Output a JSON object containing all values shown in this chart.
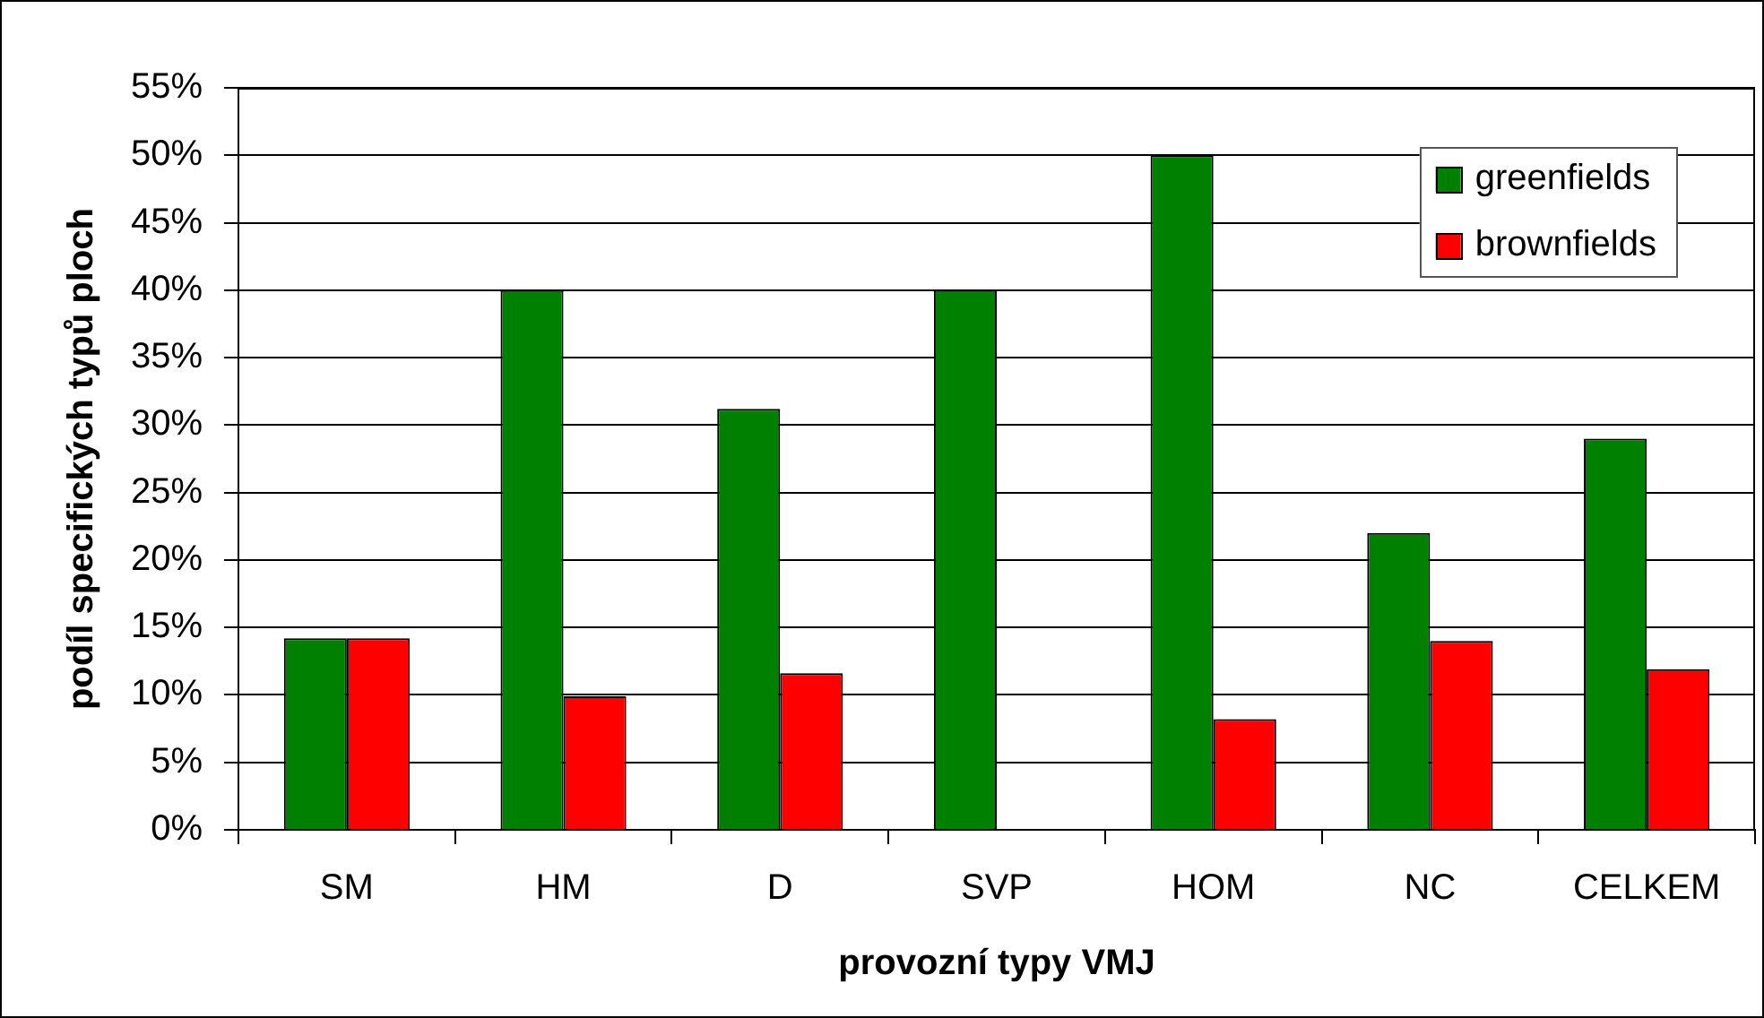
{
  "chart_data": {
    "type": "bar",
    "xlabel": "provozní typy VMJ",
    "ylabel": "podíl specifických typů ploch",
    "categories": [
      "SM",
      "HM",
      "D",
      "SVP",
      "HOM",
      "NC",
      "CELKEM"
    ],
    "series": [
      {
        "name": "greenfields",
        "color": "#008000",
        "values": [
          14.2,
          40,
          31.2,
          40,
          50,
          22,
          29
        ]
      },
      {
        "name": "brownfields",
        "color": "#ff0000",
        "values": [
          14.2,
          9.9,
          11.6,
          0,
          8.2,
          14,
          11.9
        ]
      }
    ],
    "ylim": [
      0,
      55
    ],
    "yticks": [
      {
        "value": 0,
        "label": "0%"
      },
      {
        "value": 5,
        "label": "5%"
      },
      {
        "value": 10,
        "label": "10%"
      },
      {
        "value": 15,
        "label": "15%"
      },
      {
        "value": 20,
        "label": "20%"
      },
      {
        "value": 25,
        "label": "25%"
      },
      {
        "value": 30,
        "label": "30%"
      },
      {
        "value": 35,
        "label": "35%"
      },
      {
        "value": 40,
        "label": "40%"
      },
      {
        "value": 45,
        "label": "45%"
      },
      {
        "value": 50,
        "label": "50%"
      },
      {
        "value": 55,
        "label": "55%"
      }
    ],
    "grid": "y",
    "legend": "top right"
  }
}
